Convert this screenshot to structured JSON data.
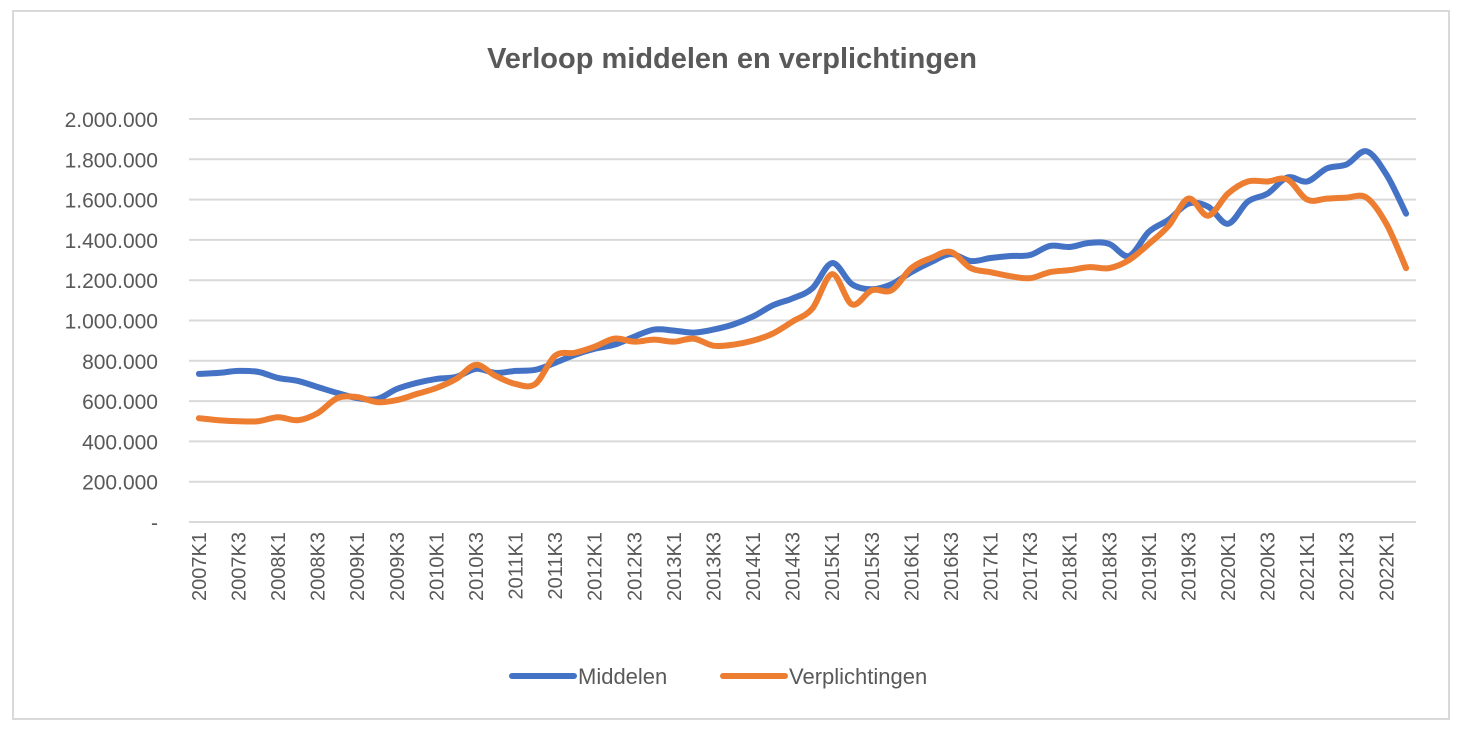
{
  "chart_data": {
    "type": "line",
    "title": "Verloop middelen en verplichtingen",
    "xlabel": "",
    "ylabel": "",
    "ylim": [
      0,
      2000000
    ],
    "y_ticks": [
      "-",
      "200.000",
      "400.000",
      "600.000",
      "800.000",
      "1.000.000",
      "1.200.000",
      "1.400.000",
      "1.600.000",
      "1.800.000",
      "2.000.000"
    ],
    "x": [
      "2007K1",
      "2007K2",
      "2007K3",
      "2007K4",
      "2008K1",
      "2008K2",
      "2008K3",
      "2008K4",
      "2009K1",
      "2009K2",
      "2009K3",
      "2009K4",
      "2010K1",
      "2010K2",
      "2010K3",
      "2010K4",
      "2011K1",
      "2011K2",
      "2011K3",
      "2011K4",
      "2012K1",
      "2012K2",
      "2012K3",
      "2012K4",
      "2013K1",
      "2013K2",
      "2013K3",
      "2013K4",
      "2014K1",
      "2014K2",
      "2014K3",
      "2014K4",
      "2015K1",
      "2015K2",
      "2015K3",
      "2015K4",
      "2016K1",
      "2016K2",
      "2016K3",
      "2016K4",
      "2017K1",
      "2017K2",
      "2017K3",
      "2017K4",
      "2018K1",
      "2018K2",
      "2018K3",
      "2018K4",
      "2019K1",
      "2019K2",
      "2019K3",
      "2019K4",
      "2020K1",
      "2020K2",
      "2020K3",
      "2020K4",
      "2021K1",
      "2021K2",
      "2021K3",
      "2021K4",
      "2022K1",
      "2022K2"
    ],
    "x_tick_labels": [
      "2007K1",
      "2007K3",
      "2008K1",
      "2008K3",
      "2009K1",
      "2009K3",
      "2010K1",
      "2010K3",
      "2011K1",
      "2011K3",
      "2012K1",
      "2012K3",
      "2013K1",
      "2013K3",
      "2014K1",
      "2014K3",
      "2015K1",
      "2015K3",
      "2016K1",
      "2016K3",
      "2017K1",
      "2017K3",
      "2018K1",
      "2018K3",
      "2019K1",
      "2019K3",
      "2020K1",
      "2020K3",
      "2021K1",
      "2021K3",
      "2022K1"
    ],
    "series": [
      {
        "name": "Middelen",
        "color": "#4472c4",
        "values": [
          735000,
          740000,
          750000,
          745000,
          715000,
          700000,
          670000,
          640000,
          615000,
          610000,
          660000,
          690000,
          710000,
          720000,
          760000,
          740000,
          750000,
          755000,
          790000,
          830000,
          860000,
          880000,
          920000,
          955000,
          950000,
          940000,
          955000,
          980000,
          1020000,
          1075000,
          1110000,
          1160000,
          1285000,
          1180000,
          1155000,
          1180000,
          1240000,
          1290000,
          1330000,
          1295000,
          1310000,
          1320000,
          1325000,
          1370000,
          1365000,
          1385000,
          1380000,
          1320000,
          1440000,
          1500000,
          1580000,
          1565000,
          1480000,
          1590000,
          1630000,
          1710000,
          1690000,
          1755000,
          1775000,
          1840000,
          1725000,
          1530000
        ]
      },
      {
        "name": "Verplichtingen",
        "color": "#ed7d31",
        "values": [
          515000,
          505000,
          500000,
          500000,
          520000,
          505000,
          540000,
          615000,
          620000,
          595000,
          605000,
          635000,
          665000,
          710000,
          780000,
          725000,
          685000,
          685000,
          825000,
          840000,
          870000,
          910000,
          895000,
          905000,
          895000,
          910000,
          875000,
          880000,
          900000,
          935000,
          995000,
          1060000,
          1230000,
          1080000,
          1150000,
          1150000,
          1260000,
          1310000,
          1340000,
          1260000,
          1240000,
          1220000,
          1210000,
          1240000,
          1250000,
          1265000,
          1260000,
          1300000,
          1380000,
          1470000,
          1605000,
          1520000,
          1630000,
          1690000,
          1690000,
          1700000,
          1600000,
          1605000,
          1610000,
          1610000,
          1480000,
          1260000
        ]
      }
    ],
    "legend": "bottom",
    "grid": true
  }
}
